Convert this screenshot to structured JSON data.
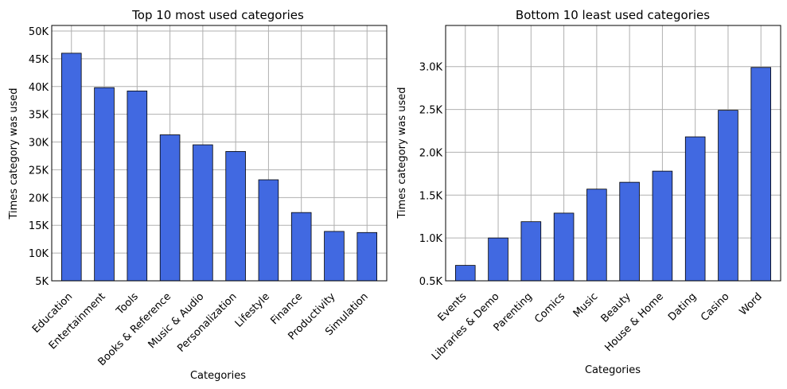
{
  "chart_data": [
    {
      "type": "bar",
      "title": "Top 10 most used categories",
      "xlabel": "Categories",
      "ylabel": "Times category was used",
      "categories": [
        "Education",
        "Entertainment",
        "Tools",
        "Books & Reference",
        "Music & Audio",
        "Personalization",
        "Lifestyle",
        "Finance",
        "Productivity",
        "Simulation"
      ],
      "values": [
        46000,
        39800,
        39200,
        31300,
        29500,
        28300,
        23200,
        17300,
        13900,
        13700
      ],
      "ylim": [
        5000,
        51000
      ],
      "yticks": [
        5000,
        10000,
        15000,
        20000,
        25000,
        30000,
        35000,
        40000,
        45000,
        50000
      ],
      "ytick_labels": [
        "5K",
        "10K",
        "15K",
        "20K",
        "25K",
        "30K",
        "35K",
        "40K",
        "45K",
        "50K"
      ],
      "grid": true,
      "bar_color": "#4169E1"
    },
    {
      "type": "bar",
      "title": "Bottom 10 least used categories",
      "xlabel": "Categories",
      "ylabel": "Times category was used",
      "categories": [
        "Events",
        "Libraries & Demo",
        "Parenting",
        "Comics",
        "Music",
        "Beauty",
        "House & Home",
        "Dating",
        "Casino",
        "Word"
      ],
      "values": [
        680,
        1000,
        1190,
        1290,
        1570,
        1650,
        1780,
        2180,
        2490,
        2990
      ],
      "ylim": [
        500,
        3480
      ],
      "yticks": [
        500,
        1000,
        1500,
        2000,
        2500,
        3000
      ],
      "ytick_labels": [
        "0.5K",
        "1.0K",
        "1.5K",
        "2.0K",
        "2.5K",
        "3.0K"
      ],
      "grid": true,
      "bar_color": "#4169E1"
    }
  ]
}
